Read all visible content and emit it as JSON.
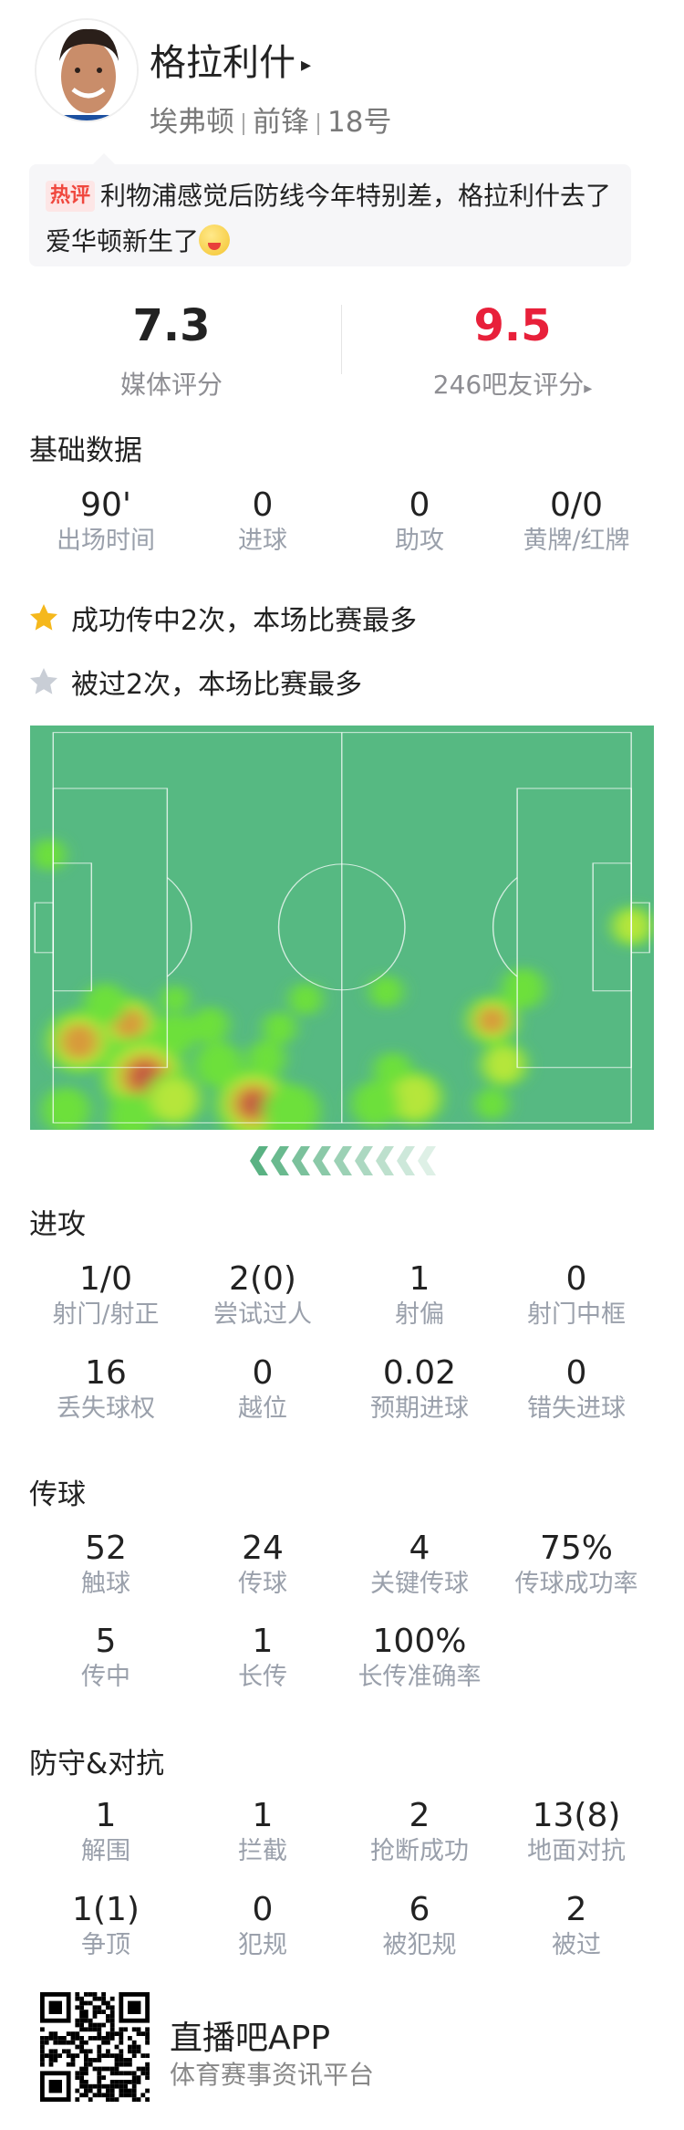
{
  "player": {
    "name": "格拉利什",
    "arrow": "▸",
    "team": "埃弗顿",
    "position": "前锋",
    "number": "18号"
  },
  "comment": {
    "tag": "热评",
    "text": "利物浦感觉后防线今年特别差，格拉利什去了爱华顿新生了",
    "emoji": "watermelon-emoji"
  },
  "ratings": {
    "media": {
      "value": "7.3",
      "label": "媒体评分"
    },
    "fans": {
      "value": "9.5",
      "label": "246吧友评分",
      "arrow": "▸",
      "color": "#e8203a"
    }
  },
  "basic": {
    "title": "基础数据",
    "items": [
      {
        "v": "90'",
        "l": "出场时间"
      },
      {
        "v": "0",
        "l": "进球"
      },
      {
        "v": "0",
        "l": "助攻"
      },
      {
        "v": "0/0",
        "l": "黄牌/红牌"
      }
    ]
  },
  "highlights": [
    {
      "icon": "star-gold",
      "color": "#f5b81c",
      "text": "成功传中2次，本场比赛最多"
    },
    {
      "icon": "star-gray",
      "color": "#c9ced6",
      "text": "被过2次，本场比赛最多"
    }
  ],
  "attack": {
    "title": "进攻",
    "rows": [
      [
        {
          "v": "1/0",
          "l": "射门/射正"
        },
        {
          "v": "2(0)",
          "l": "尝试过人"
        },
        {
          "v": "1",
          "l": "射偏"
        },
        {
          "v": "0",
          "l": "射门中框"
        }
      ],
      [
        {
          "v": "16",
          "l": "丢失球权"
        },
        {
          "v": "0",
          "l": "越位"
        },
        {
          "v": "0.02",
          "l": "预期进球"
        },
        {
          "v": "0",
          "l": "错失进球"
        }
      ]
    ]
  },
  "passing": {
    "title": "传球",
    "rows": [
      [
        {
          "v": "52",
          "l": "触球"
        },
        {
          "v": "24",
          "l": "传球"
        },
        {
          "v": "4",
          "l": "关键传球"
        },
        {
          "v": "75%",
          "l": "传球成功率"
        }
      ],
      [
        {
          "v": "5",
          "l": "传中"
        },
        {
          "v": "1",
          "l": "长传"
        },
        {
          "v": "100%",
          "l": "长传准确率"
        }
      ]
    ]
  },
  "defense": {
    "title": "防守&对抗",
    "rows": [
      [
        {
          "v": "1",
          "l": "解围"
        },
        {
          "v": "1",
          "l": "拦截"
        },
        {
          "v": "2",
          "l": "抢断成功"
        },
        {
          "v": "13(8)",
          "l": "地面对抗"
        }
      ],
      [
        {
          "v": "1(1)",
          "l": "争顶"
        },
        {
          "v": "0",
          "l": "犯规"
        },
        {
          "v": "6",
          "l": "被犯规"
        },
        {
          "v": "2",
          "l": "被过"
        }
      ]
    ]
  },
  "footer": {
    "app": "直播吧APP",
    "slogan": "体育赛事资讯平台"
  },
  "colors": {
    "pitch": "#56b982",
    "accent": "#5ab283",
    "fan_rating": "#e8203a"
  }
}
